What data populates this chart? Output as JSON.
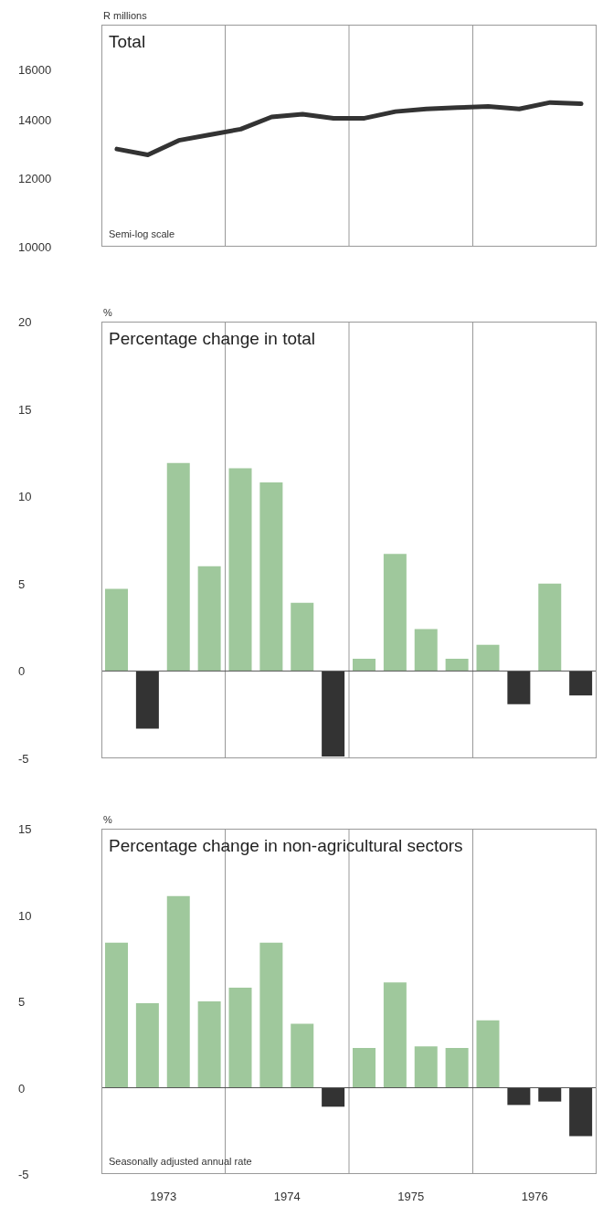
{
  "chart_data": [
    {
      "type": "line",
      "title": "Total",
      "ylabel": "R millions",
      "annotations": [
        "Semi-log scale"
      ],
      "log": true,
      "x": [
        1973.125,
        1973.375,
        1973.625,
        1973.875,
        1974.125,
        1974.375,
        1974.625,
        1974.875,
        1975.125,
        1975.375,
        1975.625,
        1975.875,
        1976.125,
        1976.375,
        1976.625,
        1976.875
      ],
      "values": [
        12950,
        12750,
        13250,
        13450,
        13650,
        14100,
        14200,
        14050,
        14050,
        14300,
        14400,
        14450,
        14500,
        14400,
        14650,
        14600
      ],
      "color": "#333333",
      "marker": "none",
      "line_style": "solid",
      "ylim": [
        10000,
        18000
      ],
      "yticks": [
        10000,
        12000,
        14000,
        16000
      ],
      "xlim": [
        1973,
        1977
      ],
      "tick_labels": "y",
      "grid": false,
      "ref_lines": [
        {
          "axis": "x",
          "value": 1974,
          "color": "#999999"
        },
        {
          "axis": "x",
          "value": 1975,
          "color": "#999999"
        },
        {
          "axis": "x",
          "value": 1976,
          "color": "#999999"
        }
      ]
    },
    {
      "type": "bar",
      "title": "Percentage change in total",
      "ylabel": "%",
      "x": [
        1973.125,
        1973.375,
        1973.625,
        1973.875,
        1974.125,
        1974.375,
        1974.625,
        1974.875,
        1975.125,
        1975.375,
        1975.625,
        1975.875,
        1976.125,
        1976.375,
        1976.625,
        1976.875
      ],
      "values": [
        4.7,
        -3.3,
        11.9,
        6.0,
        11.6,
        10.8,
        3.9,
        -4.9,
        0.7,
        6.7,
        2.4,
        0.7,
        1.5,
        -1.9,
        5.0,
        -1.4
      ],
      "colors": [
        "#9fc89c",
        "#333333",
        "#9fc89c",
        "#9fc89c",
        "#9fc89c",
        "#9fc89c",
        "#9fc89c",
        "#333333",
        "#9fc89c",
        "#9fc89c",
        "#9fc89c",
        "#9fc89c",
        "#9fc89c",
        "#333333",
        "#9fc89c",
        "#333333"
      ],
      "ylim": [
        -5,
        20
      ],
      "yticks": [
        -5,
        0,
        5,
        10,
        15,
        20
      ],
      "xlim": [
        1973,
        1977
      ],
      "tick_labels": "y",
      "grid": false,
      "ref_lines": [
        {
          "axis": "x",
          "value": 1974,
          "color": "#999999"
        },
        {
          "axis": "x",
          "value": 1975,
          "color": "#999999"
        },
        {
          "axis": "x",
          "value": 1976,
          "color": "#999999"
        },
        {
          "axis": "y",
          "value": 0,
          "color": "#555555"
        }
      ]
    },
    {
      "type": "bar",
      "title": "Percentage change in non-agricultural sectors",
      "ylabel": "%",
      "annotations": [
        "Seasonally adjusted annual rate"
      ],
      "x": [
        1973.125,
        1973.375,
        1973.625,
        1973.875,
        1974.125,
        1974.375,
        1974.625,
        1974.875,
        1975.125,
        1975.375,
        1975.625,
        1975.875,
        1976.125,
        1976.375,
        1976.625,
        1976.875
      ],
      "values": [
        8.4,
        4.9,
        11.1,
        5.0,
        5.8,
        8.4,
        3.7,
        -1.1,
        2.3,
        6.1,
        2.4,
        2.3,
        3.9,
        -1.0,
        -0.8,
        -2.8
      ],
      "colors": [
        "#9fc89c",
        "#9fc89c",
        "#9fc89c",
        "#9fc89c",
        "#9fc89c",
        "#9fc89c",
        "#9fc89c",
        "#333333",
        "#9fc89c",
        "#9fc89c",
        "#9fc89c",
        "#9fc89c",
        "#9fc89c",
        "#333333",
        "#333333",
        "#333333"
      ],
      "ylim": [
        -5,
        15
      ],
      "yticks": [
        -5,
        0,
        5,
        10,
        15
      ],
      "xlim": [
        1973,
        1977
      ],
      "xticks": [
        {
          "value": 1973.5,
          "label": "1973"
        },
        {
          "value": 1974.5,
          "label": "1974"
        },
        {
          "value": 1975.5,
          "label": "1975"
        },
        {
          "value": 1976.5,
          "label": "1976"
        }
      ],
      "grid": false,
      "ref_lines": [
        {
          "axis": "x",
          "value": 1974,
          "color": "#999999"
        },
        {
          "axis": "x",
          "value": 1975,
          "color": "#999999"
        },
        {
          "axis": "x",
          "value": 1976,
          "color": "#999999"
        },
        {
          "axis": "y",
          "value": 0,
          "color": "#555555"
        }
      ]
    }
  ]
}
